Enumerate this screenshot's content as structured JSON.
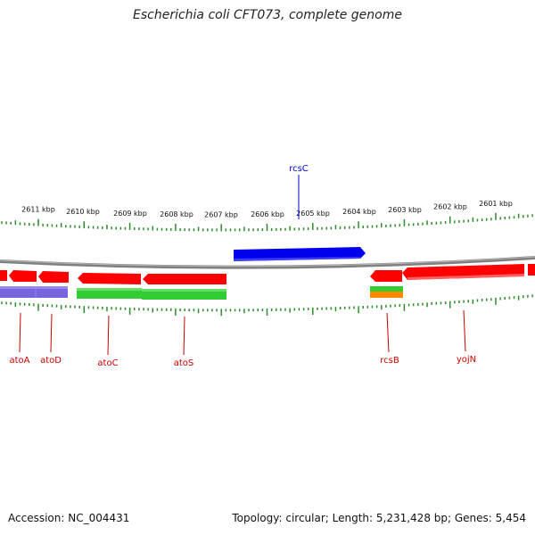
{
  "title": "Escherichia coli CFT073, complete genome",
  "footer": {
    "accession": "Accession: NC_004431",
    "summary": "Topology: circular; Length: 5,231,428 bp; Genes: 5,454"
  },
  "scale": {
    "units": "kbp",
    "labels": [
      "2611 kbp",
      "2610 kbp",
      "2609 kbp",
      "2608 kbp",
      "2607 kbp",
      "2606 kbp",
      "2605 kbp",
      "2604 kbp",
      "2603 kbp",
      "2602 kbp",
      "2601 kbp"
    ]
  },
  "genes": [
    {
      "name": "atoA",
      "strand": "minus",
      "color": "#cc0000"
    },
    {
      "name": "atoD",
      "strand": "minus",
      "color": "#cc0000"
    },
    {
      "name": "atoC",
      "strand": "minus",
      "color": "#cc0000"
    },
    {
      "name": "atoS",
      "strand": "minus",
      "color": "#cc0000"
    },
    {
      "name": "rcsB",
      "strand": "minus",
      "color": "#cc0000"
    },
    {
      "name": "yojN",
      "strand": "minus",
      "color": "#cc0000"
    },
    {
      "name": "rcsC",
      "strand": "plus",
      "color": "#0000cc"
    }
  ],
  "colors": {
    "backbone": "#8a8a8a",
    "ticks": "#2e8b2e",
    "gene_minus": "#ff0000",
    "gene_plus": "#0000ee",
    "feature_green": "#33cc33",
    "feature_purple": "#7766dd",
    "feature_orange": "#ff8800"
  }
}
